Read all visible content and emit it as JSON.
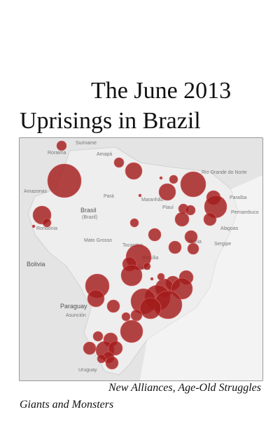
{
  "cover": {
    "title_lines": [
      "The June 2013",
      "Uprisings in Brazil"
    ],
    "map_labels": [
      "Suriname",
      "Roraima",
      "Amapá",
      "Amazonas",
      "Pará",
      "Maranhão",
      "Rio Grande do Norte",
      "Paraíba",
      "Pernambuco",
      "Alagoas",
      "Sergipe",
      "Piauí",
      "Brasil",
      "(Brazil)",
      "Rondônia",
      "Mato Grosso",
      "Bolivia",
      "Tocantins",
      "Bahia",
      "Brasília",
      "Goiás",
      "Paraguay",
      "Asunción",
      "Uruguay"
    ],
    "subtitle": "New Alliances, Age-Old Struggles",
    "author": "Giants and Monsters"
  }
}
